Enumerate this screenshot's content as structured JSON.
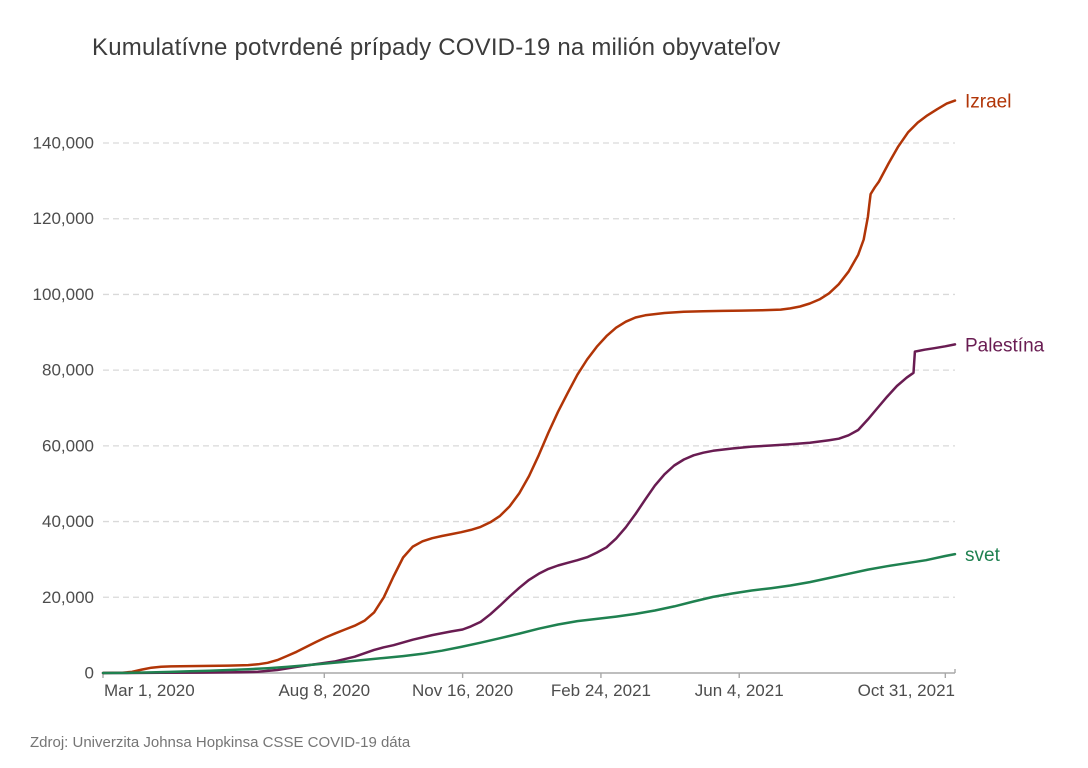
{
  "title": "Kumulatívne potvrdené prípady COVID-19 na milión obyvateľov",
  "source": "Zdroj: Univerzita Johnsa Hopkinsa CSSE COVID-19 dáta",
  "colors": {
    "title_text": "#3c3c3c",
    "axis_text": "#4d4d4d",
    "axis_line": "#a8a8a8",
    "gridline": "#d9d9d9",
    "source_text": "#757575"
  },
  "chart_data": {
    "type": "line",
    "title": "Kumulatívne potvrdené prípady COVID-19 na milión obyvateľov",
    "xlabel": "",
    "ylabel": "",
    "grid": true,
    "legend_position": "line-end-labels-right",
    "x_axis": {
      "unit": "days since Mar 1, 2020",
      "domain_days": [
        0,
        616
      ],
      "ticks": [
        {
          "day": 0,
          "label": "Mar 1, 2020",
          "align": "start"
        },
        {
          "day": 160,
          "label": "Aug 8, 2020",
          "align": "middle"
        },
        {
          "day": 260,
          "label": "Nov 16, 2020",
          "align": "middle"
        },
        {
          "day": 360,
          "label": "Feb 24, 2021",
          "align": "middle"
        },
        {
          "day": 460,
          "label": "Jun 4, 2021",
          "align": "middle"
        },
        {
          "day": 609,
          "label": "Oct 31, 2021",
          "align": "end"
        }
      ]
    },
    "y_axis": {
      "range": [
        0,
        140000
      ],
      "ticks": [
        {
          "value": 0,
          "label": "0"
        },
        {
          "value": 20000,
          "label": "20,000"
        },
        {
          "value": 40000,
          "label": "40,000"
        },
        {
          "value": 60000,
          "label": "60,000"
        },
        {
          "value": 80000,
          "label": "80,000"
        },
        {
          "value": 100000,
          "label": "100,000"
        },
        {
          "value": 120000,
          "label": "120,000"
        },
        {
          "value": 140000,
          "label": "140,000"
        }
      ]
    },
    "series": [
      {
        "name": "Izrael",
        "color": "#B13507",
        "points": [
          [
            0,
            5
          ],
          [
            7,
            40
          ],
          [
            14,
            80
          ],
          [
            21,
            300
          ],
          [
            28,
            900
          ],
          [
            35,
            1400
          ],
          [
            42,
            1650
          ],
          [
            49,
            1750
          ],
          [
            56,
            1800
          ],
          [
            63,
            1830
          ],
          [
            77,
            1880
          ],
          [
            91,
            1950
          ],
          [
            105,
            2080
          ],
          [
            112,
            2300
          ],
          [
            119,
            2700
          ],
          [
            126,
            3400
          ],
          [
            133,
            4500
          ],
          [
            140,
            5600
          ],
          [
            147,
            6900
          ],
          [
            154,
            8200
          ],
          [
            161,
            9400
          ],
          [
            168,
            10500
          ],
          [
            175,
            11500
          ],
          [
            182,
            12500
          ],
          [
            189,
            13800
          ],
          [
            196,
            16000
          ],
          [
            203,
            20000
          ],
          [
            210,
            25500
          ],
          [
            217,
            30500
          ],
          [
            224,
            33400
          ],
          [
            231,
            34800
          ],
          [
            238,
            35600
          ],
          [
            245,
            36200
          ],
          [
            252,
            36700
          ],
          [
            259,
            37200
          ],
          [
            266,
            37800
          ],
          [
            273,
            38600
          ],
          [
            280,
            39800
          ],
          [
            287,
            41500
          ],
          [
            294,
            44000
          ],
          [
            301,
            47500
          ],
          [
            308,
            52000
          ],
          [
            315,
            57500
          ],
          [
            322,
            63500
          ],
          [
            329,
            69000
          ],
          [
            336,
            74000
          ],
          [
            343,
            78800
          ],
          [
            350,
            82800
          ],
          [
            357,
            86200
          ],
          [
            364,
            89000
          ],
          [
            371,
            91200
          ],
          [
            378,
            92800
          ],
          [
            385,
            93900
          ],
          [
            392,
            94500
          ],
          [
            406,
            95100
          ],
          [
            420,
            95400
          ],
          [
            434,
            95550
          ],
          [
            448,
            95650
          ],
          [
            462,
            95720
          ],
          [
            476,
            95800
          ],
          [
            490,
            96000
          ],
          [
            497,
            96300
          ],
          [
            504,
            96800
          ],
          [
            511,
            97600
          ],
          [
            518,
            98700
          ],
          [
            525,
            100300
          ],
          [
            532,
            102700
          ],
          [
            539,
            106000
          ],
          [
            546,
            110500
          ],
          [
            550,
            114500
          ],
          [
            553,
            120500
          ],
          [
            554,
            123500
          ],
          [
            555,
            126500
          ],
          [
            558,
            128300
          ],
          [
            561,
            129800
          ],
          [
            568,
            134600
          ],
          [
            575,
            139100
          ],
          [
            582,
            142800
          ],
          [
            589,
            145400
          ],
          [
            596,
            147300
          ],
          [
            603,
            148900
          ],
          [
            610,
            150400
          ],
          [
            616,
            151200
          ]
        ]
      },
      {
        "name": "Palestína",
        "color": "#691C52",
        "points": [
          [
            0,
            0
          ],
          [
            14,
            7
          ],
          [
            42,
            55
          ],
          [
            70,
            105
          ],
          [
            98,
            180
          ],
          [
            112,
            330
          ],
          [
            126,
            800
          ],
          [
            140,
            1600
          ],
          [
            154,
            2350
          ],
          [
            168,
            3100
          ],
          [
            182,
            4300
          ],
          [
            196,
            6100
          ],
          [
            203,
            6800
          ],
          [
            210,
            7350
          ],
          [
            224,
            8800
          ],
          [
            238,
            10000
          ],
          [
            252,
            11000
          ],
          [
            260,
            11500
          ],
          [
            266,
            12300
          ],
          [
            273,
            13500
          ],
          [
            280,
            15500
          ],
          [
            287,
            17800
          ],
          [
            294,
            20200
          ],
          [
            301,
            22500
          ],
          [
            308,
            24600
          ],
          [
            315,
            26200
          ],
          [
            322,
            27500
          ],
          [
            329,
            28400
          ],
          [
            336,
            29100
          ],
          [
            343,
            29800
          ],
          [
            350,
            30600
          ],
          [
            357,
            31800
          ],
          [
            364,
            33200
          ],
          [
            371,
            35500
          ],
          [
            378,
            38500
          ],
          [
            385,
            42000
          ],
          [
            392,
            45800
          ],
          [
            399,
            49500
          ],
          [
            406,
            52500
          ],
          [
            413,
            54800
          ],
          [
            420,
            56400
          ],
          [
            427,
            57500
          ],
          [
            434,
            58200
          ],
          [
            441,
            58700
          ],
          [
            448,
            59000
          ],
          [
            455,
            59300
          ],
          [
            469,
            59800
          ],
          [
            483,
            60100
          ],
          [
            497,
            60400
          ],
          [
            511,
            60800
          ],
          [
            525,
            61500
          ],
          [
            532,
            61900
          ],
          [
            539,
            62800
          ],
          [
            546,
            64200
          ],
          [
            553,
            67000
          ],
          [
            560,
            70000
          ],
          [
            567,
            73000
          ],
          [
            574,
            75800
          ],
          [
            581,
            78000
          ],
          [
            586,
            79300
          ],
          [
            587,
            84900
          ],
          [
            594,
            85400
          ],
          [
            601,
            85800
          ],
          [
            609,
            86300
          ],
          [
            616,
            86800
          ]
        ]
      },
      {
        "name": "svet",
        "color": "#1F8150",
        "points": [
          [
            0,
            11
          ],
          [
            21,
            40
          ],
          [
            35,
            155
          ],
          [
            49,
            300
          ],
          [
            63,
            440
          ],
          [
            77,
            590
          ],
          [
            91,
            780
          ],
          [
            105,
            1000
          ],
          [
            119,
            1270
          ],
          [
            133,
            1620
          ],
          [
            147,
            2050
          ],
          [
            161,
            2520
          ],
          [
            175,
            2990
          ],
          [
            189,
            3460
          ],
          [
            203,
            3950
          ],
          [
            217,
            4470
          ],
          [
            231,
            5080
          ],
          [
            245,
            5900
          ],
          [
            259,
            6900
          ],
          [
            273,
            8000
          ],
          [
            287,
            9200
          ],
          [
            301,
            10400
          ],
          [
            315,
            11700
          ],
          [
            329,
            12800
          ],
          [
            343,
            13700
          ],
          [
            357,
            14300
          ],
          [
            371,
            14900
          ],
          [
            385,
            15600
          ],
          [
            399,
            16500
          ],
          [
            413,
            17600
          ],
          [
            427,
            18900
          ],
          [
            441,
            20100
          ],
          [
            455,
            21000
          ],
          [
            469,
            21800
          ],
          [
            483,
            22400
          ],
          [
            497,
            23100
          ],
          [
            511,
            24000
          ],
          [
            525,
            25100
          ],
          [
            539,
            26200
          ],
          [
            553,
            27300
          ],
          [
            567,
            28200
          ],
          [
            581,
            29000
          ],
          [
            595,
            29800
          ],
          [
            609,
            30900
          ],
          [
            616,
            31400
          ]
        ]
      }
    ]
  }
}
